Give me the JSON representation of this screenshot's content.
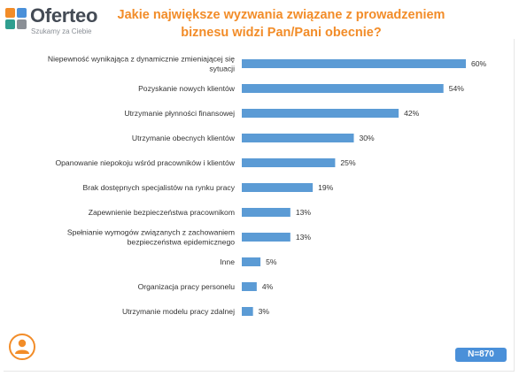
{
  "brand": {
    "name": "Oferteo",
    "tagline": "Szukamy za Ciebie",
    "logo_colors": [
      "#f28c28",
      "#4a90d9",
      "#2f9e8f",
      "#8a8f96"
    ],
    "accent": "#f28c28"
  },
  "title_lines": [
    "Jakie największe wyzwania związane z prowadzeniem",
    "biznesu widzi Pan/Pani obecnie?"
  ],
  "sample": {
    "label": "N=870"
  },
  "icons": {
    "respondent": "user-icon",
    "logo": "oferteo-logo-icon"
  },
  "chart_data": {
    "type": "bar",
    "orientation": "horizontal",
    "bar_color": "#5b9bd5",
    "value_suffix": "%",
    "xlim": [
      0,
      60
    ],
    "grid": false,
    "categories": [
      [
        "Niepewność wynikająca z dynamicznie zmieniającej się",
        "sytuacji"
      ],
      [
        "Pozyskanie nowych klientów"
      ],
      [
        "Utrzymanie płynności finansowej"
      ],
      [
        "Utrzymanie obecnych klientów"
      ],
      [
        "Opanowanie niepokoju wśród pracowników i klientów"
      ],
      [
        "Brak dostępnych specjalistów na rynku pracy"
      ],
      [
        "Zapewnienie bezpieczeństwa pracownikom"
      ],
      [
        "Spełnianie wymogów związanych z zachowaniem",
        "bezpieczeństwa epidemicznego"
      ],
      [
        "Inne"
      ],
      [
        "Organizacja pracy personelu"
      ],
      [
        "Utrzymanie modelu pracy zdalnej"
      ]
    ],
    "values": [
      60,
      54,
      42,
      30,
      25,
      19,
      13,
      13,
      5,
      4,
      3
    ]
  }
}
